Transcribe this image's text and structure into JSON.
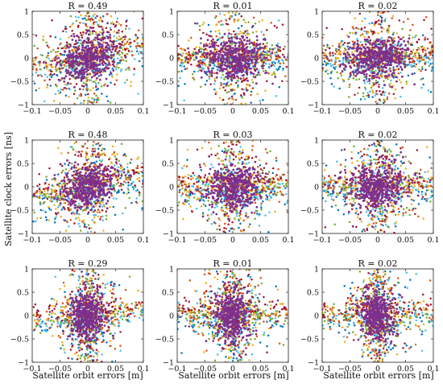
{
  "figure": {
    "ylabel": "Satellite clock errors [ns]",
    "xlabel": "Satellite orbit errors [m]"
  },
  "chart_data": [
    {
      "type": "scatter",
      "title": "R = 0.49",
      "row": 0,
      "col": 0,
      "R": 0.49,
      "xlim": [
        -0.1,
        0.1
      ],
      "ylim": [
        -1,
        1
      ],
      "xticks": [
        "−0.1",
        "−0.05",
        "0",
        "0.05",
        "0.1"
      ],
      "yticks": [
        "−1",
        "−0.5",
        "0",
        "0.5",
        "1"
      ],
      "shape": {
        "sx": 0.045,
        "sy": 0.32,
        "slope": 2.5,
        "tail": 0.3
      },
      "seed": 11
    },
    {
      "type": "scatter",
      "title": "R = 0.01",
      "row": 0,
      "col": 1,
      "R": 0.01,
      "xlim": [
        -0.1,
        0.1
      ],
      "ylim": [
        -1,
        1
      ],
      "xticks": [
        "−0.1",
        "−0.05",
        "0",
        "0.05",
        "0.1"
      ],
      "yticks": [
        "−1",
        "−0.5",
        "0",
        "0.5",
        "1"
      ],
      "shape": {
        "sx": 0.05,
        "sy": 0.3,
        "slope": 0.0,
        "tail": 0.35
      },
      "seed": 23
    },
    {
      "type": "scatter",
      "title": "R = 0.02",
      "row": 0,
      "col": 2,
      "R": 0.02,
      "xlim": [
        -0.1,
        0.1
      ],
      "ylim": [
        -1,
        1
      ],
      "xticks": [
        "−0.1",
        "−0.05",
        "0",
        "0.05",
        "0.1"
      ],
      "yticks": [
        "−1",
        "−0.5",
        "0",
        "0.5",
        "1"
      ],
      "shape": {
        "sx": 0.05,
        "sy": 0.3,
        "slope": 0.2,
        "tail": 0.35
      },
      "seed": 37
    },
    {
      "type": "scatter",
      "title": "R = 0.48",
      "row": 1,
      "col": 0,
      "R": 0.48,
      "xlim": [
        -0.1,
        0.1
      ],
      "ylim": [
        -1,
        1
      ],
      "xticks": [
        "−0.1",
        "−0.05",
        "0",
        "0.05",
        "0.1"
      ],
      "yticks": [
        "−1",
        "−0.5",
        "0",
        "0.5",
        "1"
      ],
      "shape": {
        "sx": 0.045,
        "sy": 0.3,
        "slope": 2.4,
        "tail": 0.3
      },
      "seed": 41
    },
    {
      "type": "scatter",
      "title": "R = 0.03",
      "row": 1,
      "col": 1,
      "R": 0.03,
      "xlim": [
        -0.1,
        0.1
      ],
      "ylim": [
        -1,
        1
      ],
      "xticks": [
        "−0.1",
        "−0.05",
        "0",
        "0.05",
        "0.1"
      ],
      "yticks": [
        "−1",
        "−0.5",
        "0",
        "0.5",
        "1"
      ],
      "shape": {
        "sx": 0.045,
        "sy": 0.32,
        "slope": 0.3,
        "tail": 0.35
      },
      "seed": 53
    },
    {
      "type": "scatter",
      "title": "R = 0.02",
      "row": 1,
      "col": 2,
      "R": 0.02,
      "xlim": [
        -0.1,
        0.1
      ],
      "ylim": [
        -1,
        1
      ],
      "xticks": [
        "−0.1",
        "−0.05",
        "0",
        "0.05",
        "0.1"
      ],
      "yticks": [
        "−1",
        "−0.5",
        "0",
        "0.5",
        "1"
      ],
      "shape": {
        "sx": 0.042,
        "sy": 0.33,
        "slope": 0.2,
        "tail": 0.35
      },
      "seed": 67
    },
    {
      "type": "scatter",
      "title": "R = 0.29",
      "row": 2,
      "col": 0,
      "R": 0.29,
      "xlim": [
        -0.1,
        0.1
      ],
      "ylim": [
        -1,
        1
      ],
      "xticks": [
        "−0.1",
        "−0.05",
        "0",
        "0.05",
        "0.1"
      ],
      "yticks": [
        "−1",
        "−0.5",
        "0",
        "0.5",
        "1"
      ],
      "shape": {
        "sx": 0.028,
        "sy": 0.36,
        "slope": 1.5,
        "tail": 0.3
      },
      "seed": 79
    },
    {
      "type": "scatter",
      "title": "R = 0.01",
      "row": 2,
      "col": 1,
      "R": 0.01,
      "xlim": [
        -0.1,
        0.1
      ],
      "ylim": [
        -1,
        1
      ],
      "xticks": [
        "−0.1",
        "−0.05",
        "0",
        "0.05",
        "0.1"
      ],
      "yticks": [
        "−1",
        "−0.5",
        "0",
        "0.5",
        "1"
      ],
      "shape": {
        "sx": 0.028,
        "sy": 0.36,
        "slope": 0.0,
        "tail": 0.35
      },
      "seed": 83
    },
    {
      "type": "scatter",
      "title": "R = 0.02",
      "row": 2,
      "col": 2,
      "R": 0.02,
      "xlim": [
        -0.1,
        0.1
      ],
      "ylim": [
        -1,
        1
      ],
      "xticks": [
        "−0.1",
        "−0.05",
        "0",
        "0.05",
        "0.1"
      ],
      "yticks": [
        "−1",
        "−0.5",
        "0",
        "0.5",
        "1"
      ],
      "shape": {
        "sx": 0.026,
        "sy": 0.36,
        "slope": 0.1,
        "tail": 0.35
      },
      "seed": 97
    }
  ],
  "series_colors": [
    "#0072BD",
    "#4DBEEE",
    "#77AC30",
    "#D95319",
    "#EDB120",
    "#A2142F",
    "#7E2F8E"
  ],
  "core_color": "#7E2F8E"
}
